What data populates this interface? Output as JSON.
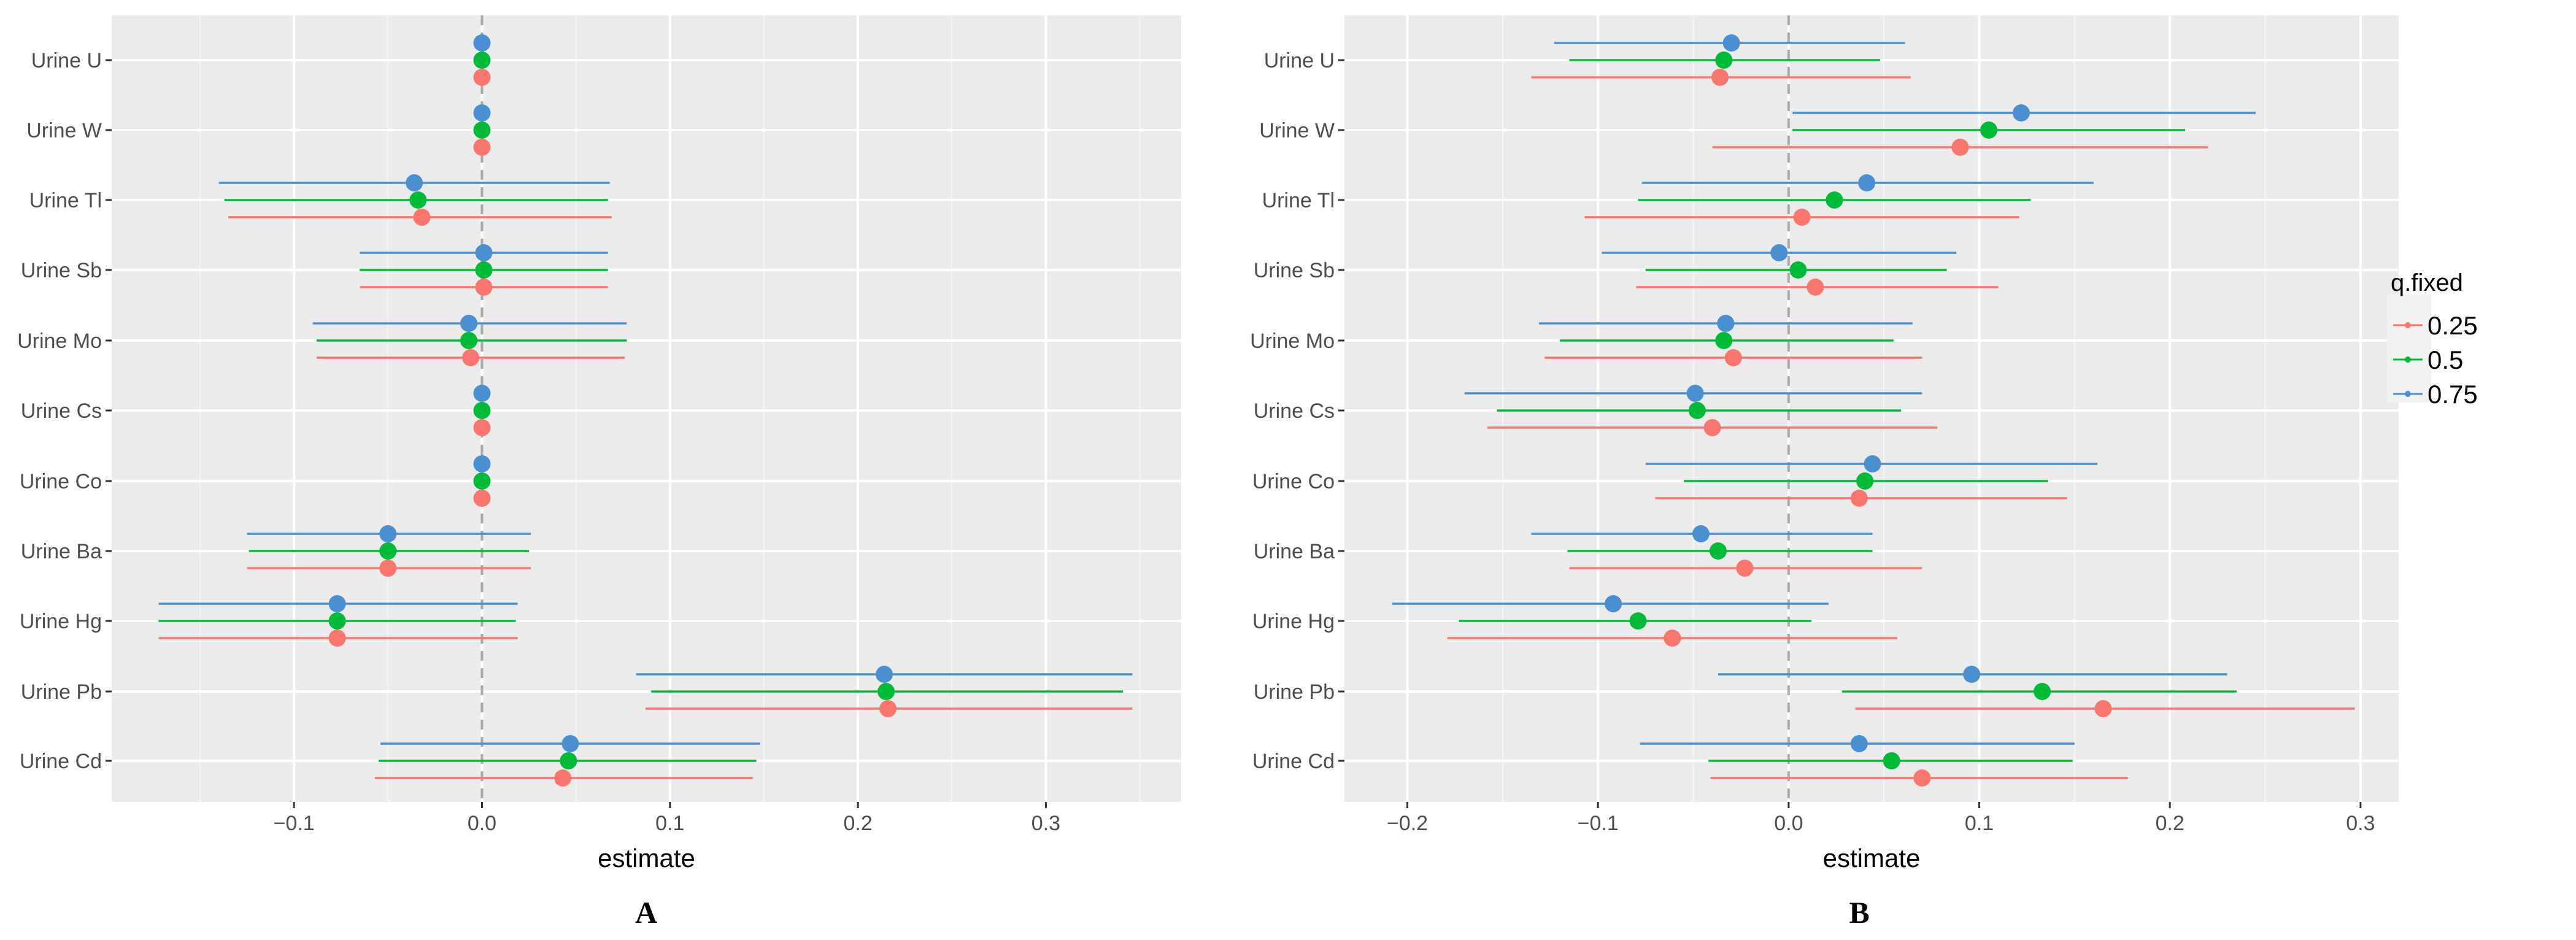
{
  "colors": {
    "panel_bg": "#ebebeb",
    "grid_major": "#ffffff",
    "zero_line": "#a9a9a9",
    "tick_text": "#4d4d4d",
    "series_0.25": "#f8766d",
    "series_0.5": "#00ba38",
    "series_0.75": "#4a90d0"
  },
  "chart_data": [
    {
      "type": "forest",
      "panel_label": "A",
      "xlabel": "estimate",
      "ylabel": "",
      "xlim": [
        -0.197,
        0.372
      ],
      "xticks": [
        -0.1,
        0.0,
        0.1,
        0.2,
        0.3
      ],
      "xtick_labels": [
        "−0.1",
        "0.0",
        "0.1",
        "0.2",
        "0.3"
      ],
      "zero_line": 0,
      "categories": [
        "Urine U",
        "Urine W",
        "Urine Tl",
        "Urine Sb",
        "Urine Mo",
        "Urine Cs",
        "Urine Co",
        "Urine Ba",
        "Urine Hg",
        "Urine Pb",
        "Urine Cd"
      ],
      "series": [
        {
          "name": "0.75",
          "color_key": "series_0.75",
          "estimate": [
            0.0,
            0.0,
            -0.036,
            0.001,
            -0.007,
            0.0,
            0.0,
            -0.05,
            -0.077,
            0.214,
            0.047
          ],
          "lower": [
            0.0,
            0.0,
            -0.14,
            -0.065,
            -0.09,
            0.0,
            0.0,
            -0.125,
            -0.172,
            0.082,
            -0.054
          ],
          "upper": [
            0.0,
            0.0,
            0.068,
            0.067,
            0.077,
            0.0,
            0.0,
            0.026,
            0.019,
            0.346,
            0.148
          ]
        },
        {
          "name": "0.5",
          "color_key": "series_0.5",
          "estimate": [
            0.0,
            0.0,
            -0.034,
            0.001,
            -0.007,
            0.0,
            0.0,
            -0.05,
            -0.077,
            0.215,
            0.046
          ],
          "lower": [
            0.0,
            0.0,
            -0.137,
            -0.065,
            -0.088,
            0.0,
            0.0,
            -0.124,
            -0.172,
            0.09,
            -0.055
          ],
          "upper": [
            0.0,
            0.0,
            0.067,
            0.067,
            0.077,
            0.0,
            0.0,
            0.025,
            0.018,
            0.341,
            0.146
          ]
        },
        {
          "name": "0.25",
          "color_key": "series_0.25",
          "estimate": [
            0.0,
            0.0,
            -0.032,
            0.001,
            -0.006,
            0.0,
            0.0,
            -0.05,
            -0.077,
            0.216,
            0.043
          ],
          "lower": [
            0.0,
            0.0,
            -0.135,
            -0.065,
            -0.088,
            0.0,
            0.0,
            -0.125,
            -0.172,
            0.087,
            -0.057
          ],
          "upper": [
            0.0,
            0.0,
            0.069,
            0.067,
            0.076,
            0.0,
            0.0,
            0.026,
            0.019,
            0.346,
            0.144
          ]
        }
      ]
    },
    {
      "type": "forest",
      "panel_label": "B",
      "xlabel": "estimate",
      "ylabel": "",
      "xlim": [
        -0.233,
        0.32
      ],
      "xticks": [
        -0.2,
        -0.1,
        0.0,
        0.1,
        0.2,
        0.3
      ],
      "xtick_labels": [
        "−0.2",
        "−0.1",
        "0.0",
        "0.1",
        "0.2",
        "0.3"
      ],
      "zero_line": 0,
      "categories": [
        "Urine U",
        "Urine W",
        "Urine Tl",
        "Urine Sb",
        "Urine Mo",
        "Urine Cs",
        "Urine Co",
        "Urine Ba",
        "Urine Hg",
        "Urine Pb",
        "Urine Cd"
      ],
      "series": [
        {
          "name": "0.75",
          "color_key": "series_0.75",
          "estimate": [
            -0.03,
            0.122,
            0.041,
            -0.005,
            -0.033,
            -0.049,
            0.044,
            -0.046,
            -0.092,
            0.096,
            0.037
          ],
          "lower": [
            -0.123,
            0.002,
            -0.077,
            -0.098,
            -0.131,
            -0.17,
            -0.075,
            -0.135,
            -0.208,
            -0.037,
            -0.078
          ],
          "upper": [
            0.061,
            0.245,
            0.16,
            0.088,
            0.065,
            0.07,
            0.162,
            0.044,
            0.021,
            0.23,
            0.15
          ]
        },
        {
          "name": "0.5",
          "color_key": "series_0.5",
          "estimate": [
            -0.034,
            0.105,
            0.024,
            0.005,
            -0.034,
            -0.048,
            0.04,
            -0.037,
            -0.079,
            0.133,
            0.054
          ],
          "lower": [
            -0.115,
            0.002,
            -0.079,
            -0.075,
            -0.12,
            -0.153,
            -0.055,
            -0.116,
            -0.173,
            0.028,
            -0.042
          ],
          "upper": [
            0.048,
            0.208,
            0.127,
            0.083,
            0.055,
            0.059,
            0.136,
            0.044,
            0.012,
            0.235,
            0.149
          ]
        },
        {
          "name": "0.25",
          "color_key": "series_0.25",
          "estimate": [
            -0.036,
            0.09,
            0.007,
            0.014,
            -0.029,
            -0.04,
            0.037,
            -0.023,
            -0.061,
            0.165,
            0.07
          ],
          "lower": [
            -0.135,
            -0.04,
            -0.107,
            -0.08,
            -0.128,
            -0.158,
            -0.07,
            -0.115,
            -0.179,
            0.035,
            -0.041
          ],
          "upper": [
            0.064,
            0.22,
            0.121,
            0.11,
            0.07,
            0.078,
            0.146,
            0.07,
            0.057,
            0.297,
            0.178
          ]
        }
      ]
    }
  ],
  "legend": {
    "title": "q.fixed",
    "items": [
      {
        "label": "0.25",
        "color_key": "series_0.25"
      },
      {
        "label": "0.5",
        "color_key": "series_0.5"
      },
      {
        "label": "0.75",
        "color_key": "series_0.75"
      }
    ]
  }
}
